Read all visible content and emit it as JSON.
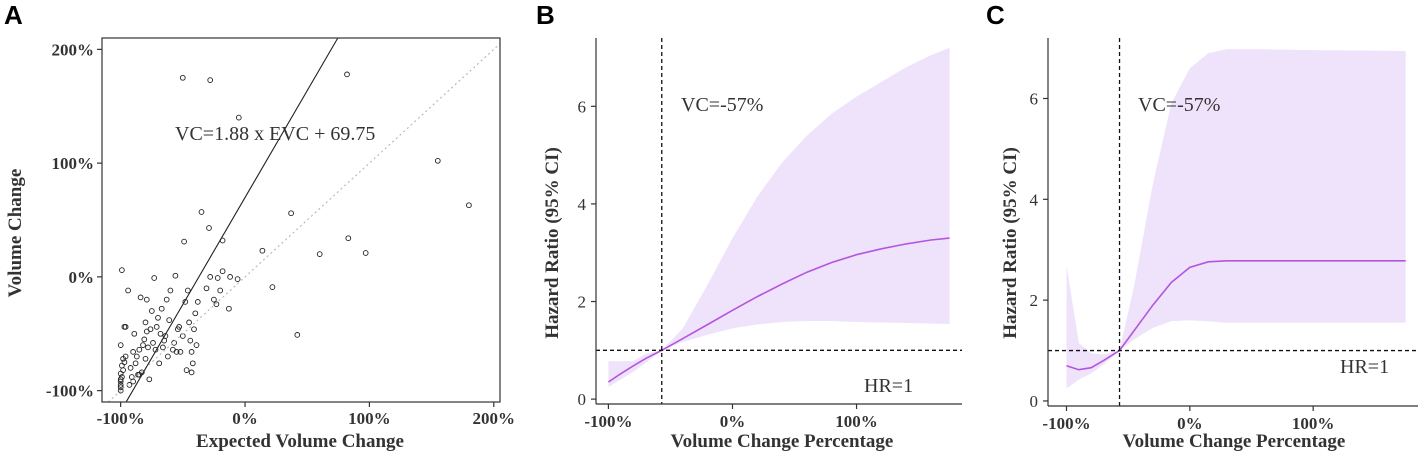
{
  "chart_data": [
    {
      "panel": "A",
      "type": "scatter",
      "title": "",
      "xlabel": "Expected Volume Change",
      "ylabel": "Volume Change",
      "xlim": [
        -115,
        205
      ],
      "ylim": [
        -110,
        210
      ],
      "xticks": [
        -100,
        0,
        100,
        200
      ],
      "xtick_labels": [
        "-100%",
        "0%",
        "100%",
        "200%"
      ],
      "yticks": [
        -100,
        0,
        100,
        200
      ],
      "ytick_labels": [
        "-100%",
        "0%",
        "100%",
        "200%"
      ],
      "annotation": "VC=1.88 x EVC + 69.75",
      "regression": {
        "slope": 1.88,
        "intercept": 69.75
      },
      "identity_line": true,
      "points": [
        [
          -100,
          -100
        ],
        [
          -100,
          -97
        ],
        [
          -100,
          -95
        ],
        [
          -100,
          -92
        ],
        [
          -100,
          -90
        ],
        [
          -99,
          -88
        ],
        [
          -100,
          -85
        ],
        [
          -98,
          -82
        ],
        [
          -99,
          -78
        ],
        [
          -97,
          -75
        ],
        [
          -98,
          -72
        ],
        [
          -96,
          -70
        ],
        [
          -100,
          -60
        ],
        [
          -97,
          -44
        ],
        [
          -99,
          6
        ],
        [
          -96,
          -44
        ],
        [
          -94,
          -12
        ],
        [
          -93,
          -95
        ],
        [
          -92,
          -80
        ],
        [
          -91,
          -88
        ],
        [
          -90,
          -92
        ],
        [
          -90,
          -66
        ],
        [
          -89,
          -50
        ],
        [
          -88,
          -76
        ],
        [
          -87,
          -70
        ],
        [
          -86,
          -86
        ],
        [
          -85,
          -86
        ],
        [
          -85,
          -64
        ],
        [
          -84,
          -18
        ],
        [
          -83,
          -84
        ],
        [
          -82,
          -60
        ],
        [
          -81,
          -55
        ],
        [
          -80,
          -40
        ],
        [
          -80,
          -72
        ],
        [
          -79,
          -20
        ],
        [
          -79,
          -48
        ],
        [
          -78,
          -62
        ],
        [
          -77,
          -90
        ],
        [
          -76,
          -46
        ],
        [
          -75,
          -30
        ],
        [
          -74,
          -58
        ],
        [
          -73,
          -1
        ],
        [
          -72,
          -64
        ],
        [
          -71,
          -44
        ],
        [
          -70,
          -36
        ],
        [
          -69,
          -76
        ],
        [
          -68,
          -50
        ],
        [
          -67,
          -28
        ],
        [
          -66,
          -62
        ],
        [
          -65,
          -56
        ],
        [
          -64,
          -52
        ],
        [
          -63,
          -20
        ],
        [
          -62,
          -70
        ],
        [
          -61,
          -38
        ],
        [
          -60,
          -12
        ],
        [
          -58,
          -64
        ],
        [
          -57,
          -58
        ],
        [
          -56,
          1
        ],
        [
          -55,
          -66
        ],
        [
          -54,
          -46
        ],
        [
          -53,
          -44
        ],
        [
          -52,
          -66
        ],
        [
          -50,
          -52
        ],
        [
          -49,
          31
        ],
        [
          -48,
          -22
        ],
        [
          -47,
          -82
        ],
        [
          -46,
          -12
        ],
        [
          -45,
          -40
        ],
        [
          -44,
          -56
        ],
        [
          -43,
          -66
        ],
        [
          -43,
          -84
        ],
        [
          -42,
          -76
        ],
        [
          -41,
          -46
        ],
        [
          -40,
          -32
        ],
        [
          -39,
          -60
        ],
        [
          -38,
          -22
        ],
        [
          -35,
          57
        ],
        [
          -31,
          -10
        ],
        [
          -29,
          43
        ],
        [
          -28,
          0
        ],
        [
          -25,
          -20
        ],
        [
          -23,
          -24
        ],
        [
          -22,
          -1
        ],
        [
          -20,
          -12
        ],
        [
          -18,
          32
        ],
        [
          -18,
          5
        ],
        [
          -13,
          -28
        ],
        [
          -12,
          0
        ],
        [
          -6,
          -2
        ],
        [
          14,
          23
        ],
        [
          22,
          -9
        ],
        [
          37,
          56
        ],
        [
          42,
          -51
        ],
        [
          60,
          20
        ],
        [
          83,
          34
        ],
        [
          97,
          21
        ],
        [
          155,
          102
        ],
        [
          180,
          63
        ],
        [
          -50,
          175
        ],
        [
          -28,
          173
        ],
        [
          -5,
          140
        ],
        [
          82,
          178
        ]
      ]
    },
    {
      "panel": "B",
      "type": "line",
      "title": "",
      "xlabel": "Volume Change Percentage",
      "ylabel": "Hazard Ratio (95% CI)",
      "xlim": [
        -110,
        185
      ],
      "ylim": [
        -0.1,
        7.4
      ],
      "xticks": [
        -100,
        0,
        100
      ],
      "xtick_labels": [
        "-100%",
        "0%",
        "100%"
      ],
      "yticks": [
        0,
        2,
        4,
        6
      ],
      "ytick_labels": [
        "0",
        "2",
        "4",
        "6"
      ],
      "cutoff_x": -57,
      "cutoff_label": "VC=-57%",
      "reference_hr": 1,
      "reference_label": "HR=1",
      "series": [
        {
          "name": "HR",
          "x": [
            -100,
            -90,
            -80,
            -70,
            -57,
            -40,
            -20,
            0,
            20,
            40,
            60,
            80,
            100,
            120,
            140,
            160,
            175
          ],
          "y": [
            0.35,
            0.52,
            0.68,
            0.83,
            1.0,
            1.24,
            1.53,
            1.82,
            2.1,
            2.36,
            2.6,
            2.8,
            2.96,
            3.08,
            3.18,
            3.26,
            3.3
          ],
          "lower": [
            0.25,
            0.4,
            0.56,
            0.74,
            1.0,
            1.17,
            1.32,
            1.45,
            1.53,
            1.58,
            1.6,
            1.6,
            1.58,
            1.57,
            1.56,
            1.55,
            1.54
          ],
          "upper": [
            0.78,
            0.78,
            0.78,
            0.93,
            1.0,
            1.45,
            2.35,
            3.3,
            4.15,
            4.85,
            5.4,
            5.85,
            6.2,
            6.5,
            6.8,
            7.05,
            7.2
          ]
        }
      ]
    },
    {
      "panel": "C",
      "type": "line",
      "title": "",
      "xlabel": "Volume Change Percentage",
      "ylabel": "Hazard Ratio (95% CI)",
      "xlim": [
        -115,
        185
      ],
      "ylim": [
        -0.1,
        7.2
      ],
      "xticks": [
        -100,
        0,
        100
      ],
      "xtick_labels": [
        "-100%",
        "0%",
        "100%"
      ],
      "yticks": [
        0,
        2,
        4,
        6
      ],
      "ytick_labels": [
        "0",
        "2",
        "4",
        "6"
      ],
      "cutoff_x": -57,
      "cutoff_label": "VC=-57%",
      "reference_hr": 1,
      "reference_label": "HR=1",
      "series": [
        {
          "name": "HR",
          "x": [
            -100,
            -90,
            -80,
            -70,
            -57,
            -45,
            -30,
            -15,
            0,
            15,
            30,
            50,
            100,
            150,
            175
          ],
          "y": [
            0.7,
            0.62,
            0.66,
            0.8,
            1.0,
            1.4,
            1.9,
            2.35,
            2.65,
            2.76,
            2.78,
            2.78,
            2.78,
            2.78,
            2.78
          ],
          "lower": [
            0.25,
            0.42,
            0.55,
            0.72,
            1.0,
            1.22,
            1.45,
            1.58,
            1.6,
            1.58,
            1.55,
            1.55,
            1.55,
            1.55,
            1.55
          ],
          "upper": [
            2.7,
            1.15,
            0.95,
            0.92,
            1.0,
            2.3,
            4.3,
            5.9,
            6.6,
            6.9,
            6.98,
            6.98,
            6.96,
            6.95,
            6.94
          ]
        }
      ]
    }
  ]
}
